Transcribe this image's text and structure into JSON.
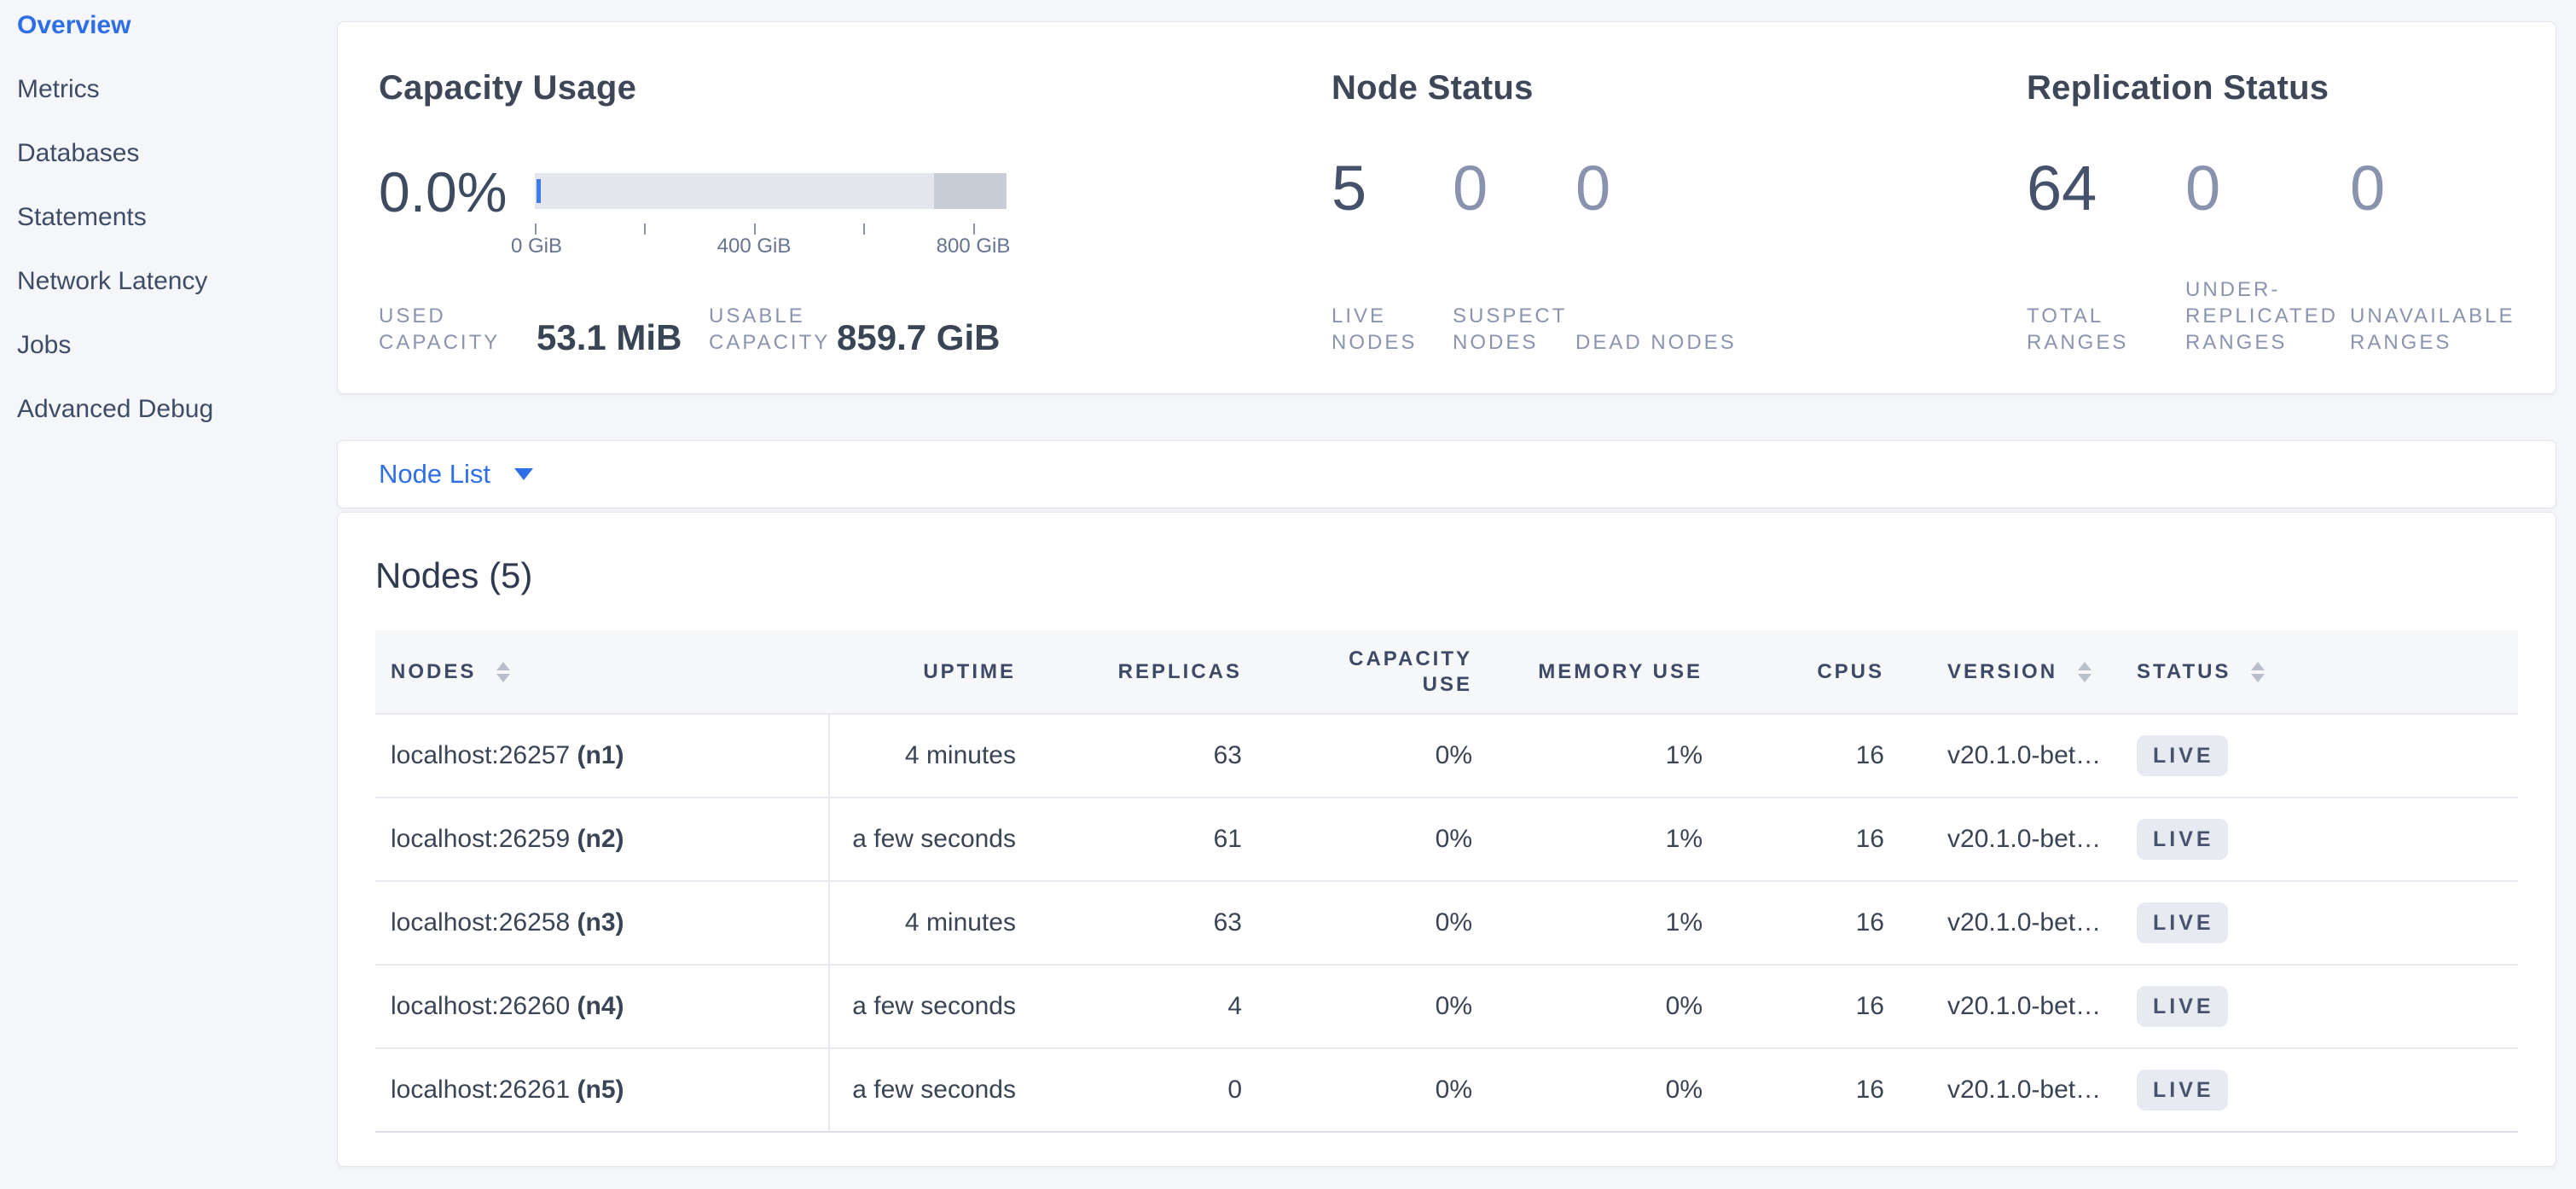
{
  "colors": {
    "accent_blue": "#2e6fe8",
    "page_background": "#f4f6f9",
    "dark_text": "#394455",
    "muted_number": "#8a93ad",
    "bar_fill": "#e3e6ec",
    "bar_other_segment": "#c9cdd7",
    "bar_used_tick": "#3b7cf0",
    "badge_background": "#e7eaf1"
  },
  "sidebar": {
    "items": [
      {
        "label": "Overview",
        "active": true
      },
      {
        "label": "Metrics",
        "active": false
      },
      {
        "label": "Databases",
        "active": false
      },
      {
        "label": "Statements",
        "active": false
      },
      {
        "label": "Network Latency",
        "active": false
      },
      {
        "label": "Jobs",
        "active": false
      },
      {
        "label": "Advanced Debug",
        "active": false
      }
    ]
  },
  "capacity": {
    "title": "Capacity Usage",
    "percent": "0.0%",
    "bar": {
      "used_pct": 0.0,
      "other_segment_left_pct": 84.6
    },
    "axis_labels": [
      "0 GiB",
      "400 GiB",
      "800 GiB"
    ],
    "used": {
      "label": "USED CAPACITY",
      "value": "53.1 MiB"
    },
    "usable": {
      "label": "USABLE CAPACITY",
      "value": "859.7 GiB"
    }
  },
  "node_status": {
    "title": "Node Status",
    "stats": [
      {
        "value": "5",
        "label": "LIVE NODES"
      },
      {
        "value": "0",
        "label": "SUSPECT NODES"
      },
      {
        "value": "0",
        "label": "DEAD NODES"
      }
    ]
  },
  "replication_status": {
    "title": "Replication Status",
    "stats": [
      {
        "value": "64",
        "label": "TOTAL RANGES"
      },
      {
        "value": "0",
        "label": "UNDER-REPLICATED RANGES"
      },
      {
        "value": "0",
        "label": "UNAVAILABLE RANGES"
      }
    ]
  },
  "node_list": {
    "label": "Node List"
  },
  "table": {
    "title": "Nodes (5)",
    "columns": [
      {
        "label": "NODES"
      },
      {
        "label": "UPTIME"
      },
      {
        "label": "REPLICAS"
      },
      {
        "label": "CAPACITY USE"
      },
      {
        "label": "MEMORY USE"
      },
      {
        "label": "CPUS"
      },
      {
        "label": "VERSION"
      },
      {
        "label": "STATUS"
      }
    ],
    "rows": [
      {
        "address": "localhost:26257",
        "node_id": "(n1)",
        "uptime": "4 minutes",
        "replicas": "63",
        "capacity_use": "0%",
        "memory_use": "1%",
        "cpus": "16",
        "version": "v20.1.0-bet…",
        "status": "LIVE"
      },
      {
        "address": "localhost:26259",
        "node_id": "(n2)",
        "uptime": "a few seconds",
        "replicas": "61",
        "capacity_use": "0%",
        "memory_use": "1%",
        "cpus": "16",
        "version": "v20.1.0-bet…",
        "status": "LIVE"
      },
      {
        "address": "localhost:26258",
        "node_id": "(n3)",
        "uptime": "4 minutes",
        "replicas": "63",
        "capacity_use": "0%",
        "memory_use": "1%",
        "cpus": "16",
        "version": "v20.1.0-bet…",
        "status": "LIVE"
      },
      {
        "address": "localhost:26260",
        "node_id": "(n4)",
        "uptime": "a few seconds",
        "replicas": "4",
        "capacity_use": "0%",
        "memory_use": "0%",
        "cpus": "16",
        "version": "v20.1.0-bet…",
        "status": "LIVE"
      },
      {
        "address": "localhost:26261",
        "node_id": "(n5)",
        "uptime": "a few seconds",
        "replicas": "0",
        "capacity_use": "0%",
        "memory_use": "0%",
        "cpus": "16",
        "version": "v20.1.0-bet…",
        "status": "LIVE"
      }
    ]
  }
}
